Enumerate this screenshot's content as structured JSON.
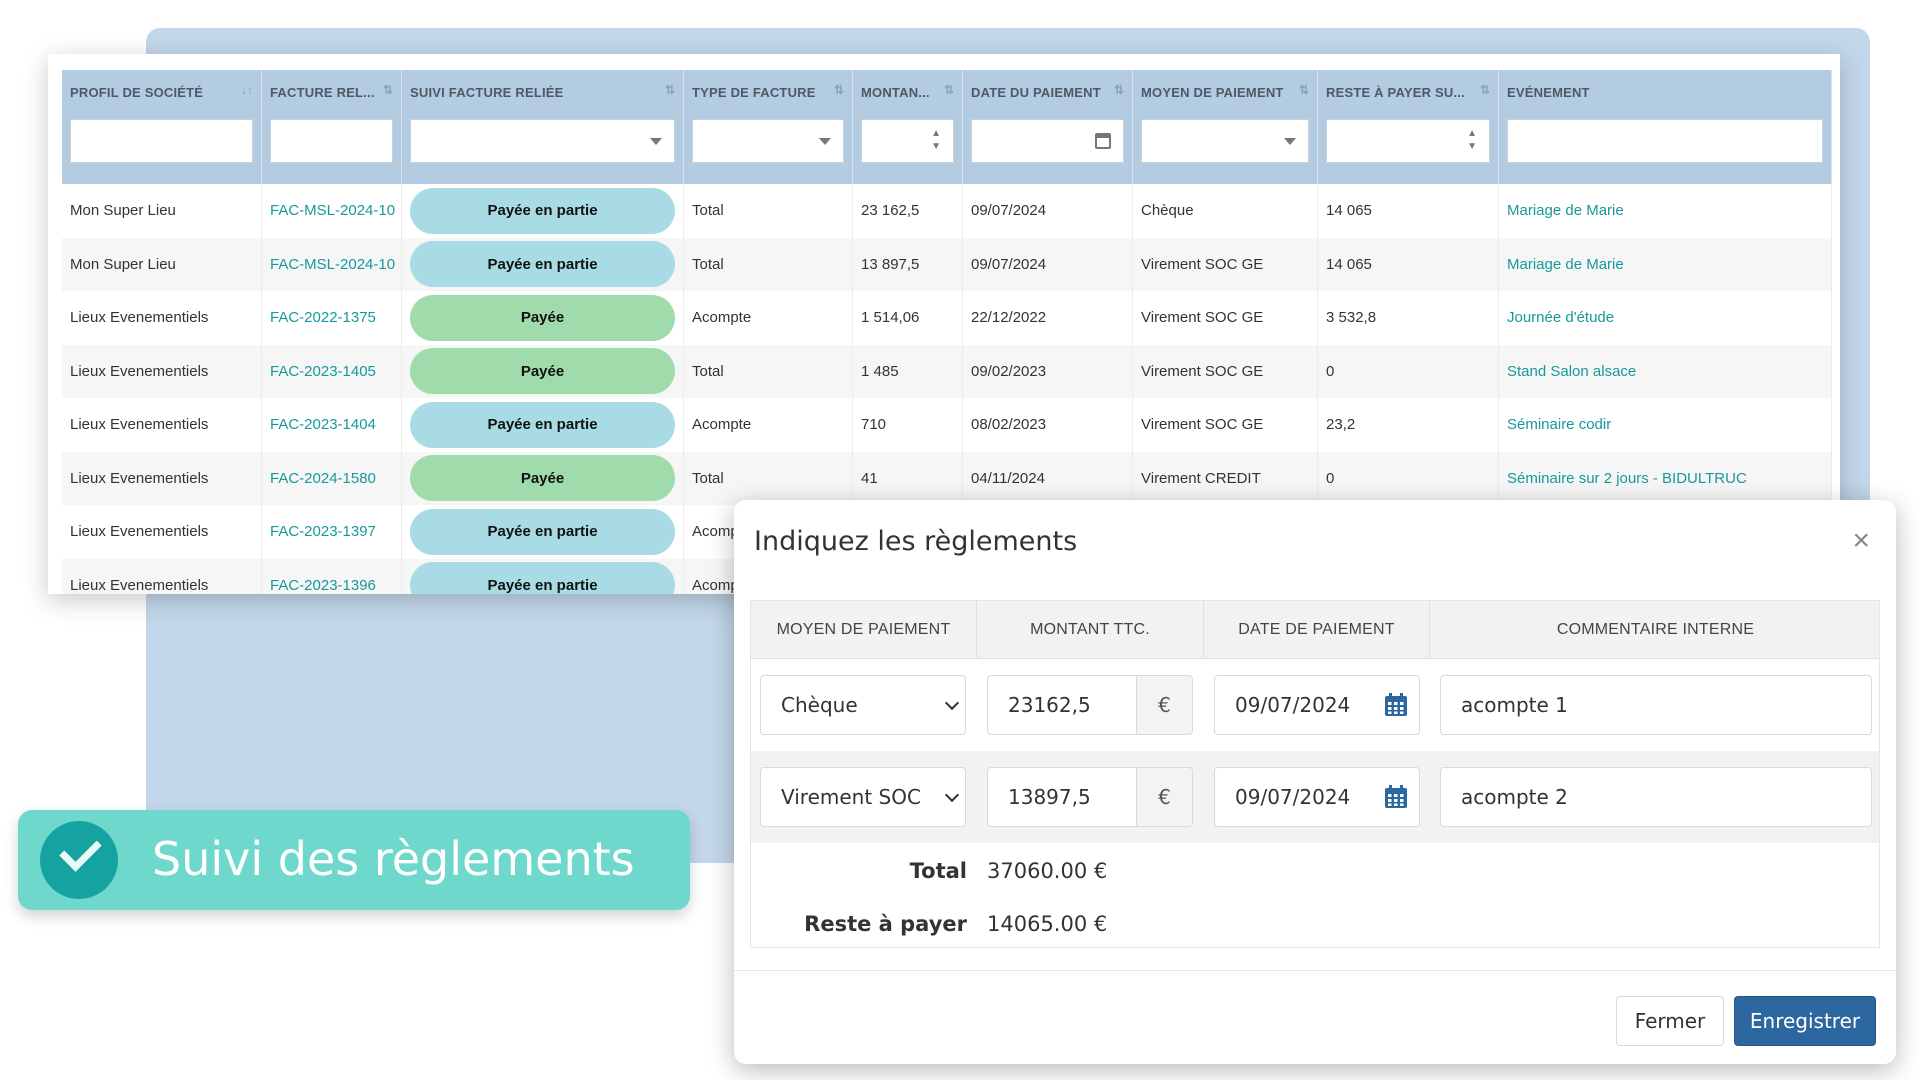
{
  "table": {
    "columns": [
      {
        "label": "PROFIL DE SOCIÉTÉ",
        "sort": "↓↑",
        "filter": "text"
      },
      {
        "label": "FACTURE REL...",
        "sort": "⇅",
        "filter": "text"
      },
      {
        "label": "SUIVI FACTURE RELIÉE",
        "sort": "⇅",
        "filter": "select"
      },
      {
        "label": "TYPE DE FACTURE",
        "sort": "⇅",
        "filter": "select"
      },
      {
        "label": "MONTAN...",
        "sort": "⇅",
        "filter": "number"
      },
      {
        "label": "DATE DU PAIEMENT",
        "sort": "⇅",
        "filter": "date"
      },
      {
        "label": "MOYEN DE PAIEMENT",
        "sort": "⇅",
        "filter": "select"
      },
      {
        "label": "RESTE À PAYER SU...",
        "sort": "⇅",
        "filter": "number"
      },
      {
        "label": "EVÉNEMENT",
        "sort": "",
        "filter": "text"
      }
    ],
    "rows": [
      {
        "societe": "Mon Super Lieu",
        "facture": "FAC-MSL-2024-10",
        "suivi": "Payée en partie",
        "status": "partial",
        "type": "Total",
        "montant": "23 162,5",
        "date": "09/07/2024",
        "moyen": "Chèque",
        "reste": "14 065",
        "evenement": "Mariage de Marie"
      },
      {
        "societe": "Mon Super Lieu",
        "facture": "FAC-MSL-2024-10",
        "suivi": "Payée en partie",
        "status": "partial",
        "type": "Total",
        "montant": "13 897,5",
        "date": "09/07/2024",
        "moyen": "Virement SOC GE",
        "reste": "14 065",
        "evenement": "Mariage de Marie"
      },
      {
        "societe": "Lieux Evenementiels",
        "facture": "FAC-2022-1375",
        "suivi": "Payée",
        "status": "paid",
        "type": "Acompte",
        "montant": "1 514,06",
        "date": "22/12/2022",
        "moyen": "Virement SOC GE",
        "reste": "3 532,8",
        "evenement": "Journée d'étude"
      },
      {
        "societe": "Lieux Evenementiels",
        "facture": "FAC-2023-1405",
        "suivi": "Payée",
        "status": "paid",
        "type": "Total",
        "montant": "1 485",
        "date": "09/02/2023",
        "moyen": "Virement SOC GE",
        "reste": "0",
        "evenement": "Stand Salon alsace"
      },
      {
        "societe": "Lieux Evenementiels",
        "facture": "FAC-2023-1404",
        "suivi": "Payée en partie",
        "status": "partial",
        "type": "Acompte",
        "montant": "710",
        "date": "08/02/2023",
        "moyen": "Virement SOC GE",
        "reste": "23,2",
        "evenement": "Séminaire codir"
      },
      {
        "societe": "Lieux Evenementiels",
        "facture": "FAC-2024-1580",
        "suivi": "Payée",
        "status": "paid",
        "type": "Total",
        "montant": "41",
        "date": "04/11/2024",
        "moyen": "Virement CREDIT",
        "reste": "0",
        "evenement": "Séminaire sur 2 jours - BIDULTRUC"
      },
      {
        "societe": "Lieux Evenementiels",
        "facture": "FAC-2023-1397",
        "suivi": "Payée en partie",
        "status": "partial",
        "type": "Acomp",
        "montant": "",
        "date": "",
        "moyen": "",
        "reste": "",
        "evenement": ""
      },
      {
        "societe": "Lieux Evenementiels",
        "facture": "FAC-2023-1396",
        "suivi": "Payée en partie",
        "status": "partial",
        "type": "Acomp",
        "montant": "",
        "date": "",
        "moyen": "",
        "reste": "",
        "evenement": ""
      }
    ]
  },
  "badge": {
    "text": "Suivi des règlements",
    "icon": "check-circle-icon"
  },
  "modal": {
    "title": "Indiquez les règlements",
    "close_icon": "×",
    "headers": [
      "MOYEN DE PAIEMENT",
      "MONTANT TTC.",
      "DATE DE PAIEMENT",
      "COMMENTAIRE INTERNE"
    ],
    "lines": [
      {
        "moyen": "Chèque",
        "montant": "23162,5",
        "currency": "€",
        "date": "09/07/2024",
        "commentaire": "acompte 1"
      },
      {
        "moyen": "Virement SOC",
        "montant": "13897,5",
        "currency": "€",
        "date": "09/07/2024",
        "commentaire": "acompte 2"
      }
    ],
    "total_label": "Total",
    "total_value": "37060.00 €",
    "reste_label": "Reste à payer",
    "reste_value": "14065.00 €",
    "close_button": "Fermer",
    "save_button": "Enregistrer"
  },
  "colors": {
    "accent_link": "#17999b",
    "pill_partial": "#a9dbe4",
    "pill_paid": "#9fdbab",
    "header_bg": "#b4cce1",
    "primary_button": "#2c67a0",
    "badge_bg": "#6ed8cc"
  }
}
